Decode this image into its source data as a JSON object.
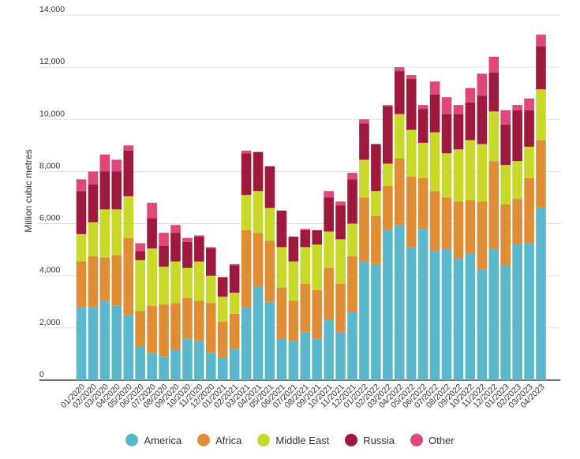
{
  "chart_data": {
    "type": "bar",
    "stacked": true,
    "ylabel": "Million cubic metres",
    "ylim": [
      0,
      14000
    ],
    "yticks": [
      "0",
      "2,000",
      "4,000",
      "6,000",
      "8,000",
      "10,000",
      "12,000",
      "14,000"
    ],
    "grid": "horizontal",
    "legend_position": "bottom",
    "categories": [
      "01/2020",
      "02/2020",
      "03/2020",
      "04/2020",
      "05/2020",
      "06/2020",
      "07/2020",
      "08/2020",
      "09/2020",
      "10/2020",
      "11/2020",
      "12/2020",
      "01/2021",
      "02/2021",
      "03/2021",
      "04/2021",
      "05/2021",
      "06/2021",
      "07/2021",
      "08/2021",
      "09/2021",
      "10/2021",
      "11/2021",
      "12/2021",
      "01/2022",
      "02/2022",
      "03/2022",
      "04/2022",
      "05/2022",
      "06/2022",
      "07/2022",
      "08/2022",
      "09/2022",
      "10/2022",
      "11/2022",
      "12/2022",
      "01/2023",
      "02/2023",
      "03/2023",
      "04/2023"
    ],
    "series": [
      {
        "name": "America",
        "color": "#5bb8cc",
        "values": [
          2800,
          2800,
          3050,
          2850,
          2500,
          1300,
          1050,
          900,
          1150,
          1600,
          1500,
          1050,
          850,
          1200,
          2800,
          3600,
          3000,
          1600,
          1500,
          1850,
          1600,
          2300,
          1850,
          2600,
          4550,
          4450,
          5750,
          5950,
          5100,
          5800,
          4950,
          5050,
          4650,
          4850,
          4250,
          5050,
          4400,
          5200,
          5250,
          6600
        ]
      },
      {
        "name": "Africa",
        "color": "#e08e35",
        "values": [
          1750,
          1950,
          1650,
          1950,
          2950,
          1350,
          1800,
          2000,
          1800,
          1550,
          1550,
          1900,
          1400,
          1350,
          2950,
          2050,
          2350,
          1950,
          1550,
          1850,
          1850,
          2000,
          1850,
          2150,
          2450,
          1850,
          1700,
          2550,
          2700,
          1950,
          2300,
          1950,
          2200,
          2050,
          2600,
          3350,
          2350,
          1750,
          2500,
          2600
        ]
      },
      {
        "name": "Middle East",
        "color": "#c8d92c",
        "values": [
          1050,
          1300,
          1850,
          1750,
          1600,
          1950,
          2200,
          1450,
          1600,
          1150,
          1500,
          1050,
          950,
          800,
          1350,
          1600,
          1250,
          1550,
          1500,
          1400,
          1750,
          1400,
          1700,
          1250,
          1450,
          950,
          850,
          1700,
          1800,
          1350,
          2250,
          1700,
          2000,
          2300,
          2200,
          1900,
          1500,
          1450,
          1200,
          1950
        ]
      },
      {
        "name": "Russia",
        "color": "#9e1a3c",
        "values": [
          1650,
          1450,
          1450,
          1450,
          1750,
          350,
          1150,
          800,
          1100,
          1000,
          950,
          1050,
          750,
          1050,
          1600,
          1500,
          1600,
          1400,
          950,
          650,
          550,
          1300,
          1300,
          1700,
          1400,
          1800,
          2200,
          1650,
          1950,
          1300,
          1450,
          1500,
          1350,
          1450,
          1850,
          1500,
          1550,
          1950,
          1400,
          1650
        ]
      },
      {
        "name": "Other",
        "color": "#e0487a",
        "values": [
          450,
          500,
          650,
          450,
          200,
          300,
          600,
          500,
          300,
          150,
          50,
          50,
          0,
          50,
          100,
          0,
          0,
          0,
          0,
          50,
          0,
          250,
          150,
          250,
          150,
          0,
          50,
          150,
          150,
          150,
          500,
          650,
          350,
          550,
          850,
          600,
          550,
          200,
          450,
          450
        ]
      }
    ]
  }
}
